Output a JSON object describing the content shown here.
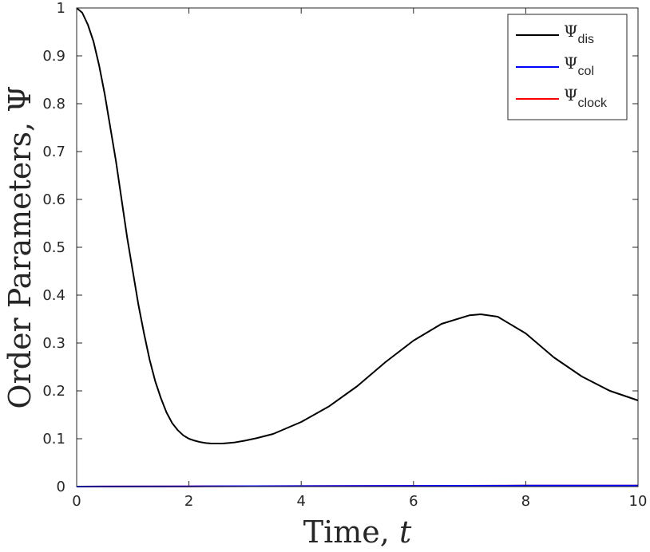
{
  "chart_data": {
    "type": "line",
    "title": "",
    "xlabel": "Time, ",
    "xlabel_var": "t",
    "ylabel": "Order Parameters, ",
    "ylabel_var": "Ψ",
    "xlim": [
      0,
      10
    ],
    "ylim": [
      0,
      1
    ],
    "xticks": [
      0,
      2,
      4,
      6,
      8,
      10
    ],
    "yticks": [
      0,
      0.1,
      0.2,
      0.3,
      0.4,
      0.5,
      0.6,
      0.7,
      0.8,
      0.9,
      1
    ],
    "grid": false,
    "legend_position": "top-right",
    "series": [
      {
        "name_symbol": "Ψ",
        "name_sub": "dis",
        "color": "#000000",
        "x": [
          0,
          0.1,
          0.2,
          0.3,
          0.4,
          0.5,
          0.6,
          0.7,
          0.8,
          0.9,
          1.0,
          1.1,
          1.2,
          1.3,
          1.4,
          1.5,
          1.6,
          1.7,
          1.8,
          1.9,
          2.0,
          2.1,
          2.2,
          2.3,
          2.4,
          2.5,
          2.6,
          2.8,
          3.0,
          3.2,
          3.5,
          4.0,
          4.5,
          5.0,
          5.5,
          6.0,
          6.5,
          7.0,
          7.2,
          7.5,
          8.0,
          8.5,
          9.0,
          9.5,
          10.0
        ],
        "y": [
          1.0,
          0.99,
          0.965,
          0.93,
          0.88,
          0.82,
          0.75,
          0.68,
          0.6,
          0.52,
          0.45,
          0.38,
          0.32,
          0.265,
          0.22,
          0.185,
          0.155,
          0.133,
          0.118,
          0.107,
          0.1,
          0.096,
          0.093,
          0.091,
          0.09,
          0.09,
          0.09,
          0.092,
          0.096,
          0.101,
          0.11,
          0.135,
          0.168,
          0.21,
          0.26,
          0.305,
          0.34,
          0.358,
          0.36,
          0.355,
          0.32,
          0.27,
          0.23,
          0.2,
          0.18
        ]
      },
      {
        "name_symbol": "Ψ",
        "name_sub": "col",
        "color": "#0000ff",
        "x": [
          0,
          2,
          4,
          6,
          8,
          10
        ],
        "y": [
          0,
          0.0005,
          0.001,
          0.0015,
          0.002,
          0.002
        ]
      },
      {
        "name_symbol": "Ψ",
        "name_sub": "clock",
        "color": "#ff0000",
        "x": [
          0,
          2,
          4,
          6,
          8,
          10
        ],
        "y": [
          0,
          0.0005,
          0.001,
          0.0015,
          0.002,
          0.002
        ]
      }
    ]
  }
}
